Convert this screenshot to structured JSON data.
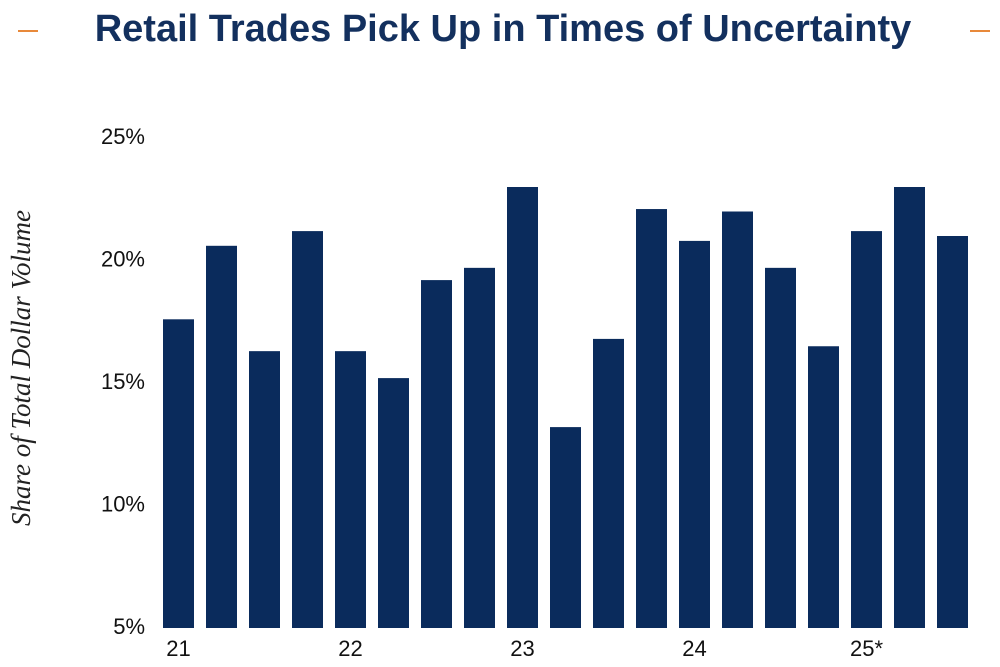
{
  "chart_data": {
    "type": "bar",
    "title": "Retail Trades Pick Up in Times of Uncertainty",
    "y_label": "Share of Total Dollar Volume",
    "categories": [
      "21",
      null,
      null,
      null,
      "22",
      null,
      null,
      null,
      "23",
      null,
      null,
      null,
      "24",
      null,
      null,
      null,
      "25*",
      null,
      null
    ],
    "values": [
      17.6,
      20.6,
      16.3,
      21.2,
      16.3,
      15.2,
      19.2,
      19.7,
      23.0,
      13.2,
      16.8,
      22.1,
      20.8,
      22.0,
      19.7,
      16.5,
      21.2,
      23.0,
      21.0
    ],
    "color": "#0a2b5c",
    "ylim": [
      5,
      25
    ],
    "yticks": [
      {
        "value": 5,
        "label": "5%"
      },
      {
        "value": 10,
        "label": "10%"
      },
      {
        "value": 15,
        "label": "15%"
      },
      {
        "value": 20,
        "label": "20%"
      },
      {
        "value": 25,
        "label": "25%"
      }
    ],
    "grid": false
  }
}
